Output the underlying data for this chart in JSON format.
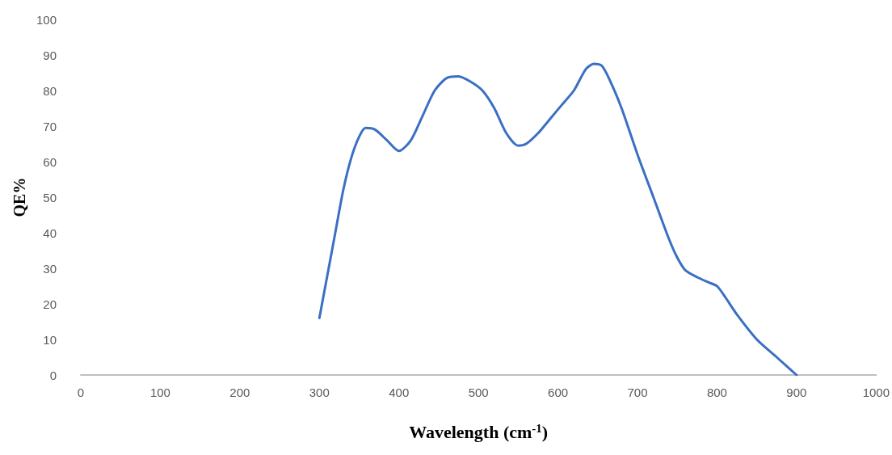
{
  "chart_data": {
    "type": "line",
    "xlabel": "Wavelength (cm$^{-1}$)",
    "ylabel": "QE%",
    "xlim": [
      0,
      1000
    ],
    "xticks": [
      0,
      100,
      200,
      300,
      400,
      500,
      600,
      700,
      800,
      900,
      1000
    ],
    "ylim": [
      0,
      100
    ],
    "yticks": [
      0,
      10,
      20,
      30,
      40,
      50,
      60,
      70,
      80,
      90,
      100
    ],
    "grid": false,
    "marker": "none",
    "line_style": "solid",
    "series": [
      {
        "color": "#3a6fc4",
        "x": [
          300,
          310,
          320,
          330,
          340,
          350,
          358,
          370,
          385,
          400,
          415,
          430,
          445,
          460,
          475,
          490,
          505,
          520,
          535,
          550,
          560,
          575,
          590,
          605,
          620,
          635,
          645,
          655,
          665,
          680,
          700,
          720,
          740,
          750,
          760,
          775,
          790,
          800,
          810,
          825,
          850,
          875,
          900
        ],
        "values": [
          16,
          28,
          40,
          52,
          61,
          67,
          69.5,
          69,
          66,
          63,
          66,
          73,
          80,
          83.5,
          84,
          82.5,
          80,
          75,
          68,
          64.5,
          65,
          68,
          72,
          76,
          80,
          86,
          87.5,
          87,
          83,
          75,
          62,
          50,
          38,
          33,
          29.5,
          27.5,
          26,
          25,
          22,
          17,
          10,
          5,
          0
        ]
      }
    ]
  }
}
